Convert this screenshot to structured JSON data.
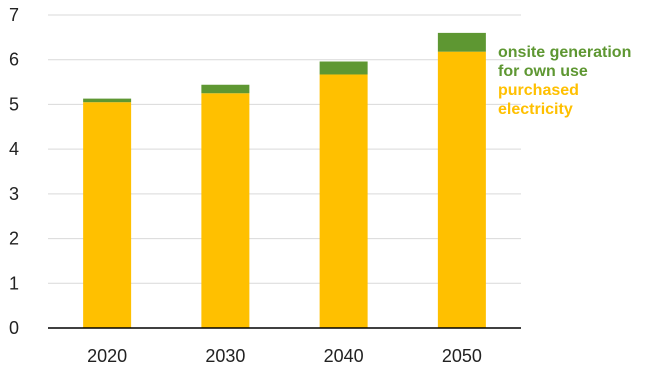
{
  "chart_data": {
    "type": "bar",
    "stacked": true,
    "categories": [
      "2020",
      "2030",
      "2040",
      "2050"
    ],
    "series": [
      {
        "name": "purchased electricity",
        "color": "#FFC000",
        "values": [
          5.05,
          5.25,
          5.67,
          6.18
        ]
      },
      {
        "name": "onsite generation for own use",
        "color": "#5E9732",
        "values": [
          0.08,
          0.19,
          0.29,
          0.42
        ]
      }
    ],
    "ylim": [
      0,
      7
    ],
    "yticks": [
      0,
      1,
      2,
      3,
      4,
      5,
      6,
      7
    ],
    "grid": true,
    "legend": {
      "placement": "right",
      "entries": [
        {
          "lines": [
            "onsite generation",
            "for own use"
          ],
          "color": "#5E9732"
        },
        {
          "lines": [
            "purchased",
            "electricity"
          ],
          "color": "#FFC000"
        }
      ]
    },
    "title": "",
    "xlabel": "",
    "ylabel": ""
  }
}
